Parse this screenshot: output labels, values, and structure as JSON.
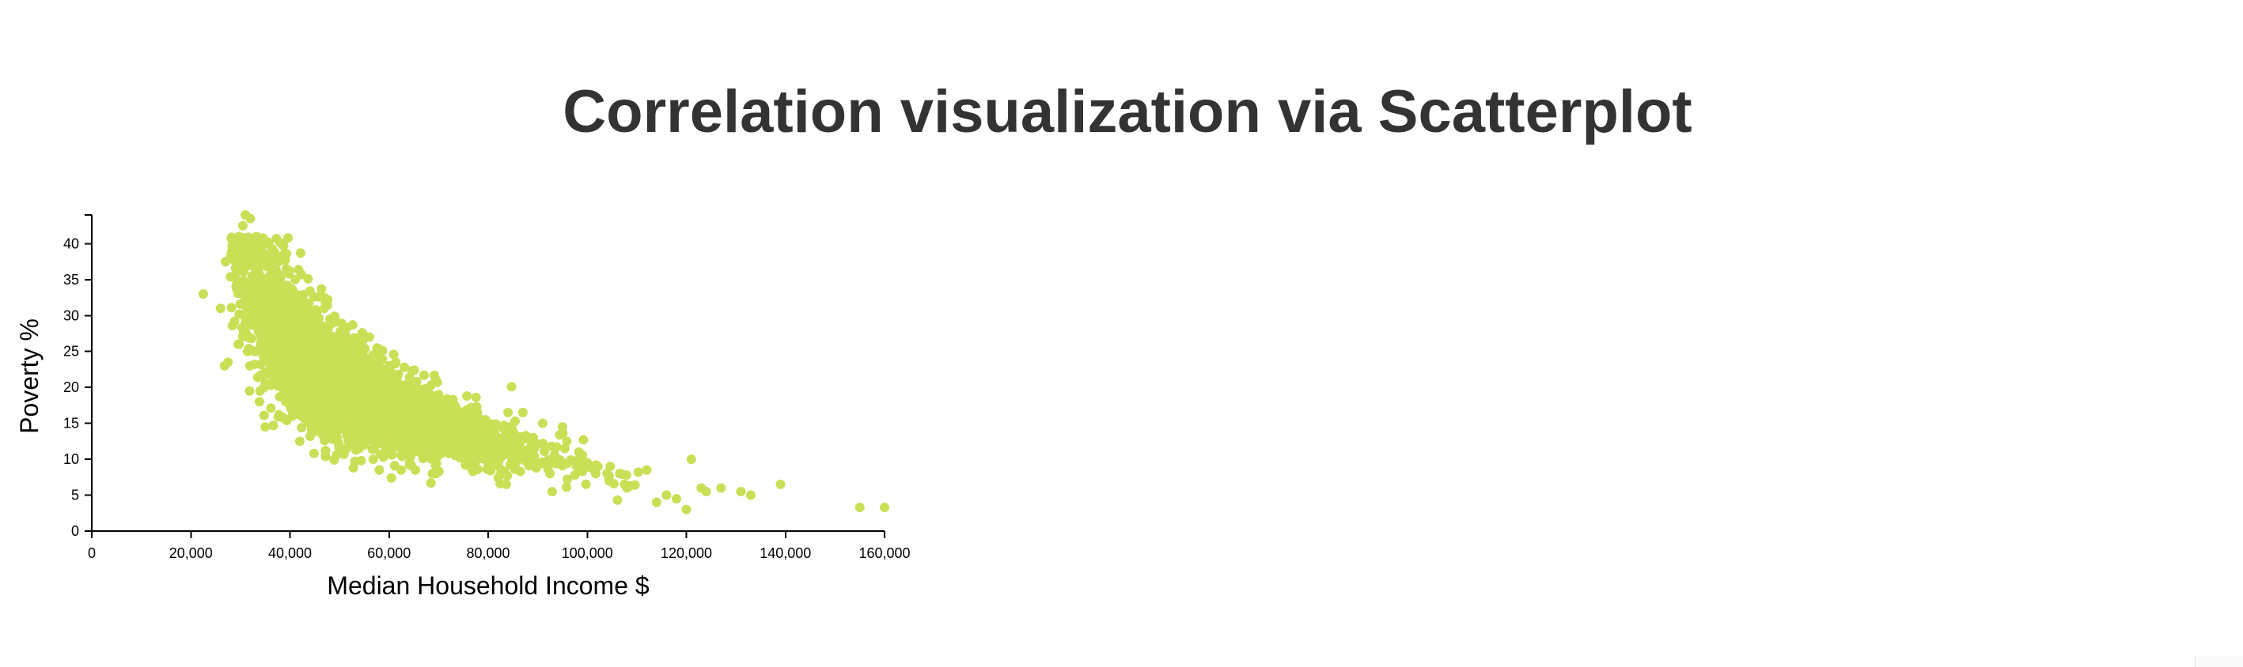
{
  "page": {
    "title": "Correlation visualization via Scatterplot"
  },
  "chart_data": {
    "type": "scatter",
    "title": "",
    "xlabel": "Median Household Income $",
    "ylabel": "Poverty %",
    "xlim": [
      0,
      160000
    ],
    "ylim": [
      0,
      44
    ],
    "x_ticks": [
      0,
      20000,
      40000,
      60000,
      80000,
      100000,
      120000,
      140000,
      160000
    ],
    "x_tick_labels": [
      "0",
      "20,000",
      "40,000",
      "60,000",
      "80,000",
      "100,000",
      "120,000",
      "140,000",
      "160,000"
    ],
    "y_ticks": [
      0,
      5,
      10,
      15,
      20,
      25,
      30,
      35,
      40
    ],
    "y_tick_labels": [
      "0",
      "5",
      "10",
      "15",
      "20",
      "25",
      "30",
      "35",
      "40"
    ],
    "grid": false,
    "legend": "none",
    "point_color": "#c8e055",
    "point_count_approx": 3100,
    "relationship": "y = 1,150,000 / x (decreasing, approximately inverse)",
    "series": [
      {
        "values": [
          [
            22500,
            33
          ],
          [
            26000,
            31
          ],
          [
            27000,
            37.5
          ],
          [
            26800,
            23
          ],
          [
            27500,
            23.5
          ],
          [
            29000,
            40
          ],
          [
            30500,
            42.5
          ],
          [
            31000,
            44
          ],
          [
            32000,
            43.5
          ],
          [
            34000,
            38
          ],
          [
            36000,
            37
          ],
          [
            37000,
            38.5
          ],
          [
            35000,
            14.5
          ],
          [
            38000,
            31
          ],
          [
            42000,
            30.5
          ],
          [
            44000,
            24.5
          ],
          [
            45000,
            22
          ],
          [
            48000,
            26
          ],
          [
            49000,
            24
          ],
          [
            52000,
            21.5
          ],
          [
            55000,
            20
          ],
          [
            58000,
            22
          ],
          [
            60000,
            18.5
          ],
          [
            62000,
            19
          ],
          [
            64000,
            19.5
          ],
          [
            66000,
            18.5
          ],
          [
            67000,
            16.5
          ],
          [
            70000,
            19
          ],
          [
            72000,
            15
          ],
          [
            75000,
            14
          ],
          [
            78000,
            15
          ],
          [
            80000,
            14.5
          ],
          [
            84000,
            16.5
          ],
          [
            87000,
            16.5
          ],
          [
            91000,
            15
          ],
          [
            95000,
            14.5
          ],
          [
            100000,
            9.5
          ],
          [
            104000,
            8
          ],
          [
            108000,
            6
          ],
          [
            112000,
            8.5
          ],
          [
            114000,
            4
          ],
          [
            116000,
            5
          ],
          [
            118000,
            4.5
          ],
          [
            120000,
            3
          ],
          [
            121000,
            10
          ],
          [
            123000,
            6
          ],
          [
            124000,
            5.5
          ],
          [
            127000,
            6
          ],
          [
            131000,
            5.5
          ],
          [
            133000,
            5
          ],
          [
            139000,
            6.5
          ],
          [
            155000,
            3.3
          ],
          [
            160000,
            3.3
          ]
        ]
      }
    ]
  }
}
